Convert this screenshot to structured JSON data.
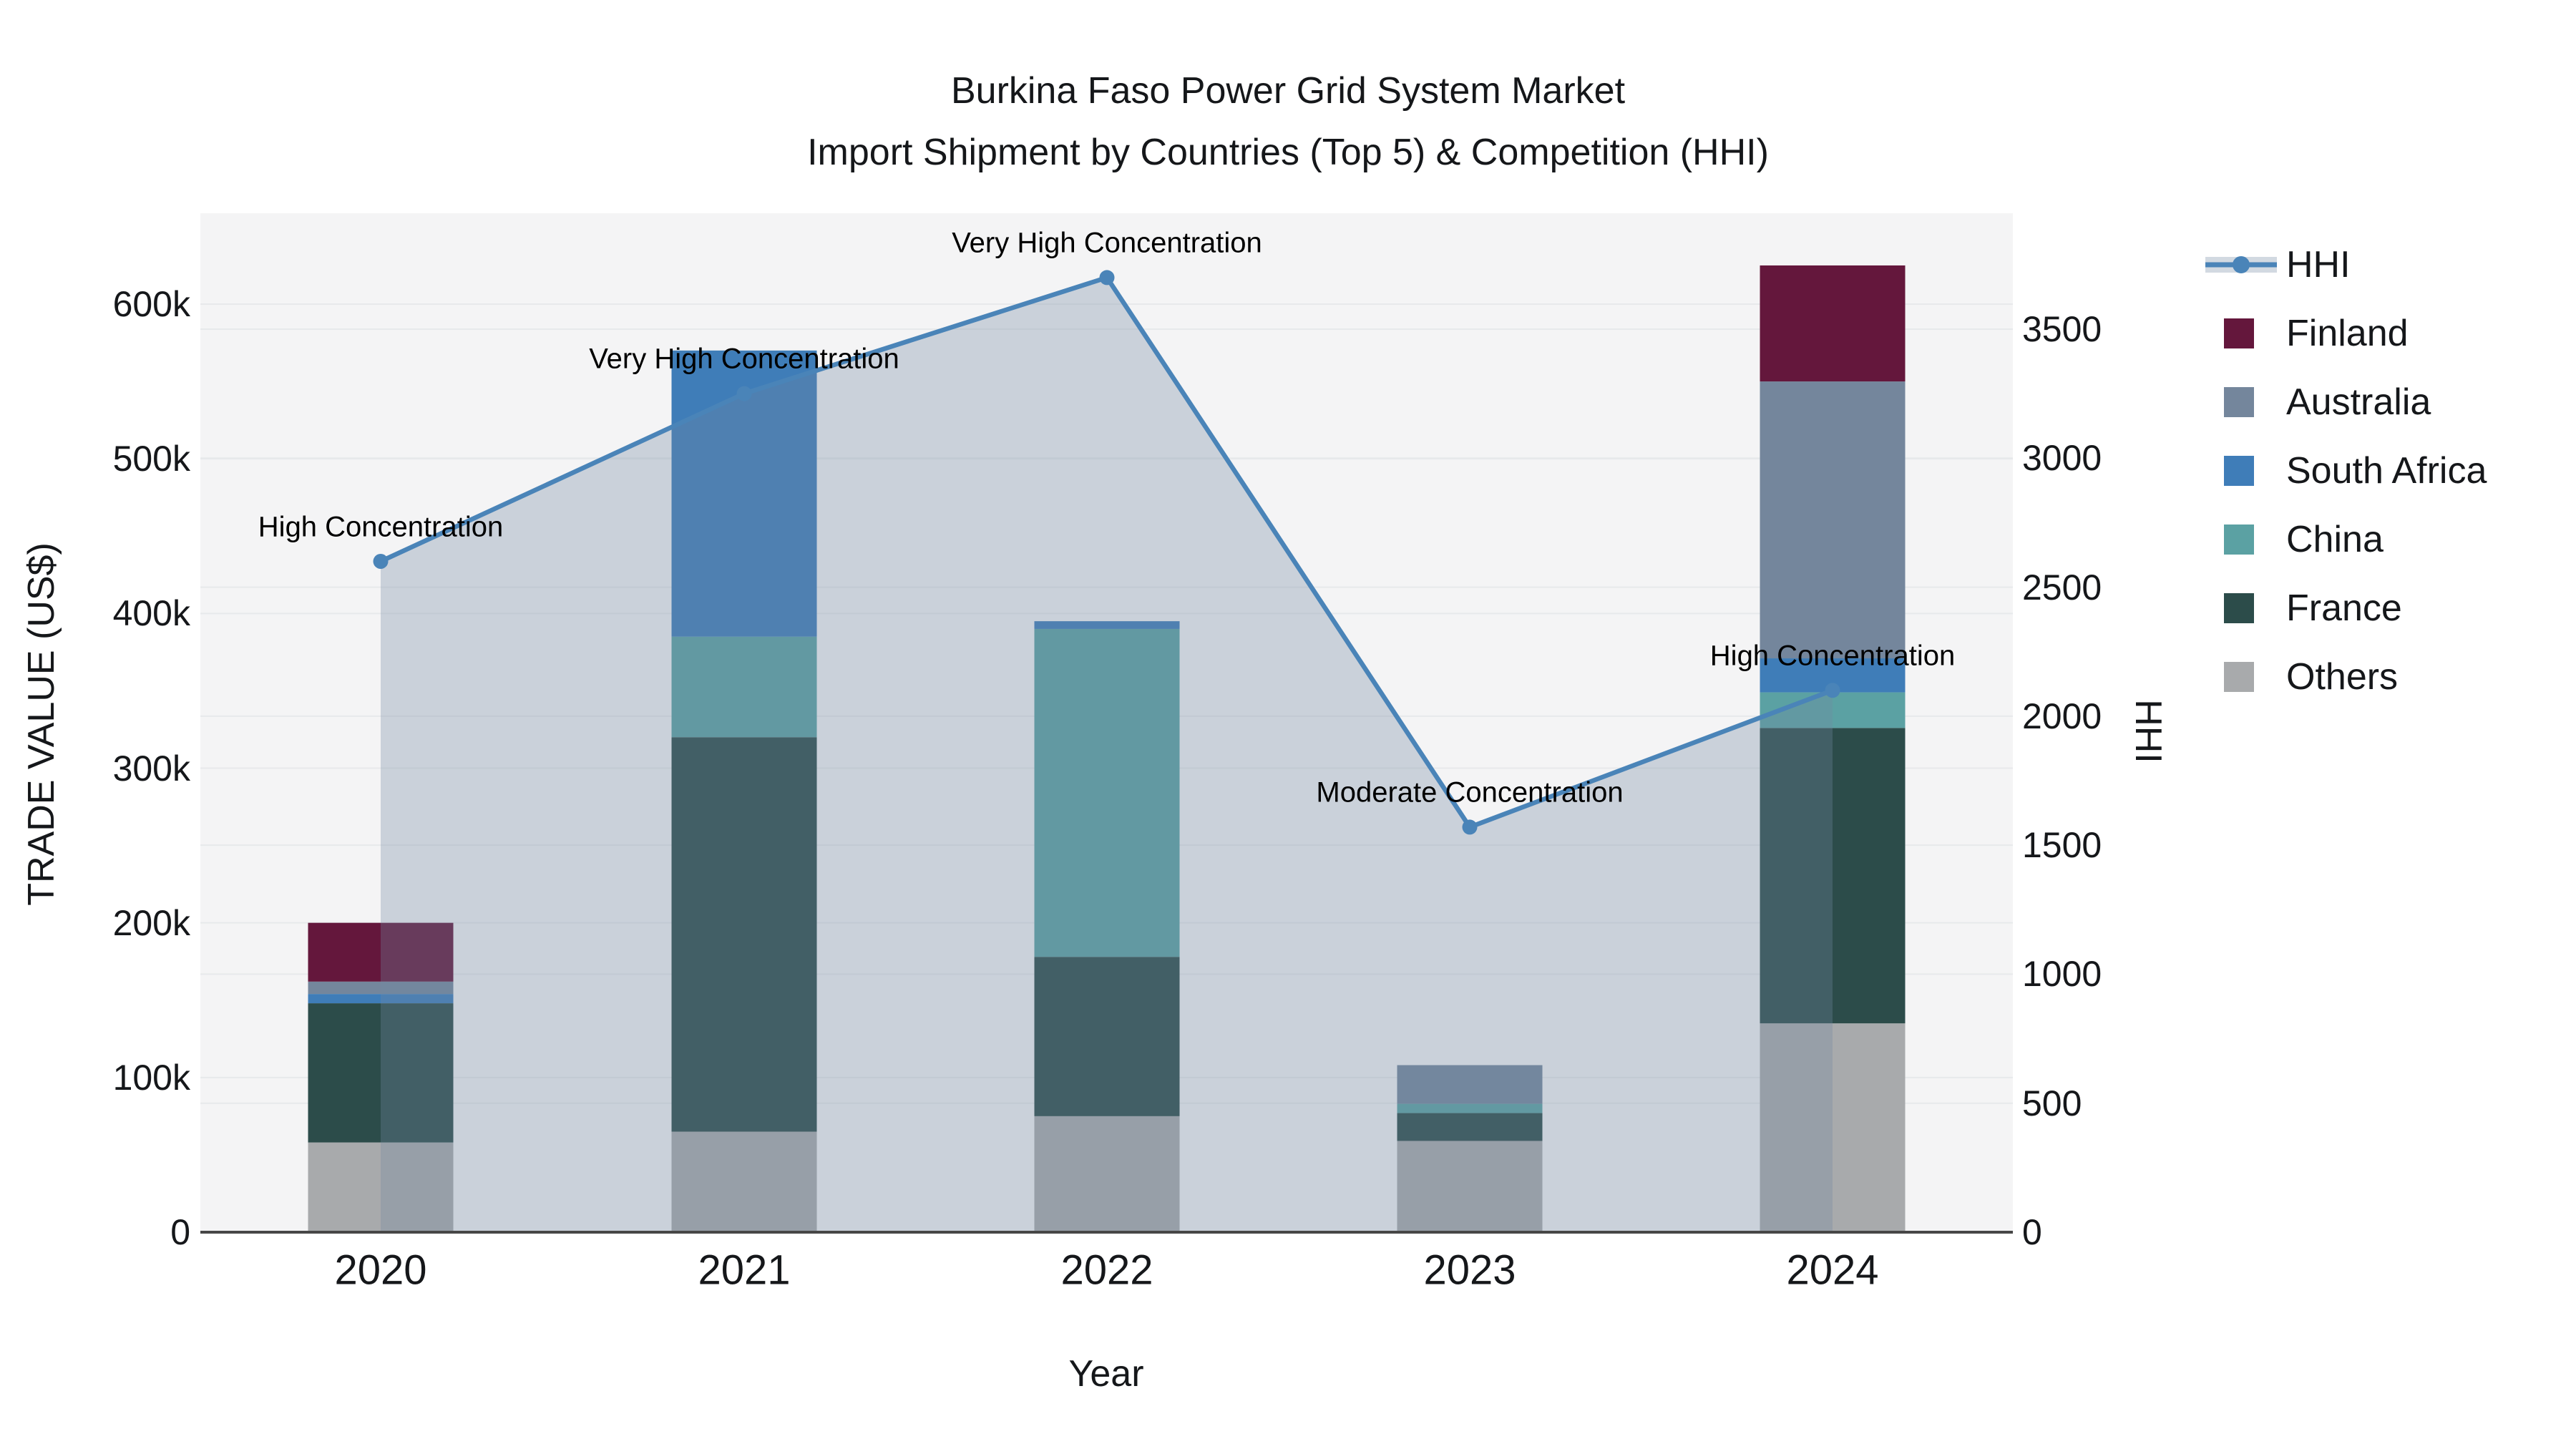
{
  "title": {
    "line1": "Burkina Faso Power Grid System Market",
    "line2": "Import Shipment by Countries (Top 5) & Competition (HHI)"
  },
  "axes": {
    "left_title": "TRADE VALUE (US$)",
    "right_title": "HHI",
    "bottom_title": "Year",
    "left_ticks": {
      "labels": [
        "0",
        "100k",
        "200k",
        "300k",
        "400k",
        "500k",
        "600k"
      ],
      "values": [
        0,
        100000,
        200000,
        300000,
        400000,
        500000,
        600000
      ]
    },
    "right_ticks": {
      "labels": [
        "0",
        "500",
        "1000",
        "1500",
        "2000",
        "2500",
        "3000",
        "3500"
      ],
      "values": [
        0,
        500,
        1000,
        1500,
        2000,
        2500,
        3000,
        3500
      ]
    }
  },
  "legend": {
    "items": [
      {
        "label": "HHI",
        "type": "line",
        "color": "#4a84b8"
      },
      {
        "label": "Finland",
        "type": "swatch",
        "color": "#64173c"
      },
      {
        "label": "Australia",
        "type": "swatch",
        "color": "#74869c"
      },
      {
        "label": "South Africa",
        "type": "swatch",
        "color": "#3f7db8"
      },
      {
        "label": "China",
        "type": "swatch",
        "color": "#5ba1a3"
      },
      {
        "label": "France",
        "type": "swatch",
        "color": "#2c4c4a"
      },
      {
        "label": "Others",
        "type": "swatch",
        "color": "#a8aaac"
      }
    ]
  },
  "chart_data": {
    "type": "combo-stacked-bar-line",
    "title": "Burkina Faso Power Grid System Market — Import Shipment by Countries (Top 5) & Competition (HHI)",
    "categories": [
      "2020",
      "2021",
      "2022",
      "2023",
      "2024"
    ],
    "xlabel": "Year",
    "left_axis": {
      "label": "TRADE VALUE (US$)",
      "range": [
        0,
        659000
      ],
      "grid": true
    },
    "right_axis": {
      "label": "HHI",
      "range": [
        0,
        3950
      ],
      "grid": true
    },
    "legend_position": "right",
    "series": [
      {
        "name": "Others",
        "color": "#a8aaac",
        "values": [
          58000,
          65000,
          75000,
          59000,
          135000
        ]
      },
      {
        "name": "France",
        "color": "#2c4c4a",
        "values": [
          90000,
          255000,
          103000,
          18000,
          191000
        ]
      },
      {
        "name": "China",
        "color": "#5ba1a3",
        "values": [
          0,
          65000,
          212000,
          6000,
          23000
        ]
      },
      {
        "name": "South Africa",
        "color": "#3f7db8",
        "values": [
          6000,
          185000,
          5000,
          0,
          22000
        ]
      },
      {
        "name": "Australia",
        "color": "#74869c",
        "values": [
          8000,
          0,
          0,
          25000,
          179000
        ]
      },
      {
        "name": "Finland",
        "color": "#64173c",
        "values": [
          38000,
          0,
          0,
          0,
          75000
        ]
      }
    ],
    "bar_totals": [
      200000,
      570000,
      395000,
      108000,
      625000
    ],
    "line": {
      "name": "HHI",
      "color": "#4a84b8",
      "area_fill": "rgba(114,138,162,0.32)",
      "values": [
        2600,
        3250,
        3700,
        1570,
        2100
      ]
    },
    "annotations": [
      "High Concentration",
      "Very High Concentration",
      "Very High Concentration",
      "Moderate Concentration",
      "High Concentration"
    ]
  }
}
